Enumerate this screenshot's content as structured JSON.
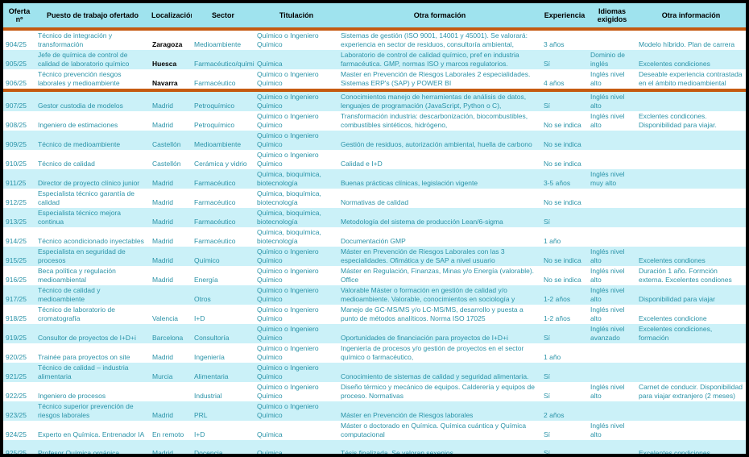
{
  "colors": {
    "header_bg": "#9fe3ee",
    "band_bg": "#cbf1f8",
    "divider": "#c55a11",
    "text_teal": "#2a93a8",
    "text_black": "#000000",
    "frame": "#000000"
  },
  "table": {
    "fields": [
      "oferta",
      "puesto",
      "localizacion",
      "sector",
      "titulacion",
      "otra_formacion",
      "experiencia",
      "idiomas",
      "otra_informacion"
    ],
    "columns": [
      {
        "field": "oferta",
        "label": "Oferta nº"
      },
      {
        "field": "puesto",
        "label": "Puesto de trabajo ofertado"
      },
      {
        "field": "localizacion",
        "label": "Localización"
      },
      {
        "field": "sector",
        "label": "Sector"
      },
      {
        "field": "titulacion",
        "label": "Titulación"
      },
      {
        "field": "otra_formacion",
        "label": "Otra formación"
      },
      {
        "field": "experiencia",
        "label": "Experiencia"
      },
      {
        "field": "idiomas",
        "label": "Idiomas exigidos"
      },
      {
        "field": "otra_informacion",
        "label": "Otra información"
      }
    ],
    "rows": [
      {
        "oferta": "904/25",
        "puesto": "Técnico de integración y transformación",
        "localizacion": "Zaragoza",
        "localizacion_bold": true,
        "sector": "Medioambiente",
        "titulacion": "Químico o Ingeniero Químico",
        "otra_formacion": "Sistemas de gestión (ISO 9001, 14001 y 45001). Se valorará: experiencia en sector de residuos, consultoría ambiental,",
        "experiencia": "3 años",
        "idiomas": "",
        "otra_informacion": "Modelo híbrido. Plan de carrera",
        "shaded": false,
        "divider_after": false
      },
      {
        "oferta": "905/25",
        "puesto": "Jefe de química de control de calidad de laboratorio químico",
        "localizacion": "Huesca",
        "localizacion_bold": true,
        "sector": "Farmacéutico/químico",
        "titulacion": "Química",
        "otra_formacion": "Laboratorio de control de calidad químico, pref en industria farmacéutica. GMP, normas ISO y marcos regulatorios.",
        "experiencia": "Sí",
        "idiomas": "Dominio de inglés",
        "otra_informacion": "Excelentes condiciones",
        "shaded": true,
        "divider_after": false
      },
      {
        "oferta": "906/25",
        "puesto": "Técnico prevención riesgos laborales y medioambiente",
        "localizacion": "Navarra",
        "localizacion_bold": true,
        "sector": "Farmacéutico",
        "titulacion": "Químico o Ingeniero Químico",
        "otra_formacion": "Master en Prevención de Riesgos Laborales 2 especialidades. Sistemas ERP's (SAP) y POWER BI",
        "experiencia": "4 años",
        "idiomas": "Inglés nivel alto",
        "otra_informacion": "Deseable experiencia contrastada en el ámbito medioambiental",
        "shaded": false,
        "divider_after": true
      },
      {
        "oferta": "907/25",
        "puesto": "Gestor custodia de modelos",
        "localizacion": "Madrid",
        "localizacion_bold": false,
        "sector": "Petroquímico",
        "titulacion": "Químico o Ingeniero Químico",
        "otra_formacion": "Conocimientos manejo de herramientas de análisis de datos, lenguajes de programación (JavaScript, Python o C),",
        "experiencia": "Sí",
        "idiomas": "Inglés nivel alto",
        "otra_informacion": "",
        "shaded": true,
        "divider_after": false
      },
      {
        "oferta": "908/25",
        "puesto": "Ingeniero de estimaciones",
        "localizacion": "Madrid",
        "localizacion_bold": false,
        "sector": "Petroquímico",
        "titulacion": "Químico o Ingeniero Químico",
        "otra_formacion": "Transformación industria: descarbonización, biocombustibles, combustibles sintéticos, hidrógeno,",
        "experiencia": "No se indica",
        "idiomas": "Inglés nivel alto",
        "otra_informacion": "Exclentes condicones. Disponibilidad para viajar.",
        "shaded": false,
        "divider_after": false
      },
      {
        "oferta": "909/25",
        "puesto": "Técnico de medioambiente",
        "localizacion": "Castellón",
        "localizacion_bold": false,
        "sector": "Medioambiente",
        "titulacion": "Químico o Ingeniero Químico",
        "otra_formacion": "Gestión de residuos, autorización ambiental, huella de carbono",
        "experiencia": "No se indica",
        "idiomas": "",
        "otra_informacion": "",
        "shaded": true,
        "divider_after": false
      },
      {
        "oferta": "910/25",
        "puesto": "Técnico de calidad",
        "localizacion": "Castellón",
        "localizacion_bold": false,
        "sector": "Cerámica y vidrio",
        "titulacion": "Químico o Ingeniero Químico",
        "otra_formacion": "Calidad e I+D",
        "experiencia": "No se indica",
        "idiomas": "",
        "otra_informacion": "",
        "shaded": false,
        "divider_after": false
      },
      {
        "oferta": "911/25",
        "puesto": "Director de proyecto clínico junior",
        "localizacion": "Madrid",
        "localizacion_bold": false,
        "sector": "Farmacéutico",
        "titulacion": "Química, bioquímica, biotecnología",
        "otra_formacion": "Buenas prácticas clínicas, legislación vigente",
        "experiencia": "3-5 años",
        "idiomas": "Inglés nivel muy alto",
        "otra_informacion": "",
        "shaded": true,
        "divider_after": false
      },
      {
        "oferta": "912/25",
        "puesto": "Especialista técnico garantía de calidad",
        "localizacion": "Madrid",
        "localizacion_bold": false,
        "sector": "Farmacéutico",
        "titulacion": "Química, bioquímica, biotecnología",
        "otra_formacion": "Normativas de calidad",
        "experiencia": "No se indica",
        "idiomas": "",
        "otra_informacion": "",
        "shaded": false,
        "divider_after": false
      },
      {
        "oferta": "913/25",
        "puesto": "Especialista técnico mejora continua",
        "localizacion": "Madrid",
        "localizacion_bold": false,
        "sector": "Farmacéutico",
        "titulacion": "Química, bioquímica, biotecnología",
        "otra_formacion": "Metodología del sistema de producción Lean/6-sigma",
        "experiencia": "Sí",
        "idiomas": "",
        "otra_informacion": "",
        "shaded": true,
        "divider_after": false
      },
      {
        "oferta": "914/25",
        "puesto": "Técnico acondicionado inyectables",
        "localizacion": "Madrid",
        "localizacion_bold": false,
        "sector": "Farmacéutico",
        "titulacion": "Química, bioquímica, biotecnología",
        "otra_formacion": "Documentación GMP",
        "experiencia": "1 año",
        "idiomas": "",
        "otra_informacion": "",
        "shaded": false,
        "divider_after": false
      },
      {
        "oferta": "915/25",
        "puesto": "Especialista en seguridad de procesos",
        "localizacion": "Madrid",
        "localizacion_bold": false,
        "sector": "Químico",
        "titulacion": "Químico o Ingeniero Químico",
        "otra_formacion": "Máster en Prevención de Riesgos Laborales con las 3 especialidades. Ofimática y de SAP a nivel usuario",
        "experiencia": "No se indica",
        "idiomas": "Inglés nivel alto",
        "otra_informacion": "Excelentes condiones",
        "shaded": true,
        "divider_after": false
      },
      {
        "oferta": "916/25",
        "puesto": "Beca política y regulación medioambiental",
        "localizacion": "Madrid",
        "localizacion_bold": false,
        "sector": "Energía",
        "titulacion": "Químico o Ingeniero Químico",
        "otra_formacion": "Máster en Regulación, Finanzas, Minas y/o Energía (valorable). Office",
        "experiencia": "No se indica",
        "idiomas": "Inglés nivel alto",
        "otra_informacion": "Duración 1 año. Formción externa. Excelentes condiones",
        "shaded": false,
        "divider_after": false
      },
      {
        "oferta": "917/25",
        "puesto": "Técnico de calidad y medioambiente",
        "localizacion": "",
        "localizacion_bold": false,
        "sector": "Otros",
        "titulacion": "Químico o Ingeniero Químico",
        "otra_formacion": "Valorable Máster o formación en gestión de calidad y/o medioambiente. Valorable, conocimientos en sociología y",
        "experiencia": "1-2 años",
        "idiomas": "Inglés nivel alto",
        "otra_informacion": "Disponibilidad para viajar",
        "shaded": true,
        "divider_after": false
      },
      {
        "oferta": "918/25",
        "puesto": "Técnico de laboratorio de cromatografía",
        "localizacion": "Valencia",
        "localizacion_bold": false,
        "sector": "I+D",
        "titulacion": "Químico o Ingeniero Químico",
        "otra_formacion": "Manejo de GC-MS/MS y/o LC-MS/MS, desarrollo y puesta a punto de métodos analíticos. Norma ISO 17025",
        "experiencia": "1-2 años",
        "idiomas": "Inglés nivel alto",
        "otra_informacion": "Excelentes condicione",
        "shaded": false,
        "divider_after": false
      },
      {
        "oferta": "919/25",
        "puesto": "Consultor de proyectos de I+D+i",
        "localizacion": "Barcelona",
        "localizacion_bold": false,
        "sector": "Consultoría",
        "titulacion": "Químico o Ingeniero Químico",
        "otra_formacion": "Oportunidades de financiación para proyectos de I+D+i",
        "experiencia": "Sí",
        "idiomas": "Inglés nivel avanzado",
        "otra_informacion": "Excelentes condiciones, formación",
        "shaded": true,
        "divider_after": false
      },
      {
        "oferta": "920/25",
        "puesto": "Trainée para proyectos on site",
        "localizacion": "Madrid",
        "localizacion_bold": false,
        "sector": "Ingeniería",
        "titulacion": "Químico o Ingeniero Químico",
        "otra_formacion": "Ingeniería de procesos y/o gestión de proyectos en el sector químico o farmacéutico,",
        "experiencia": "1 año",
        "idiomas": "",
        "otra_informacion": "",
        "shaded": false,
        "divider_after": false
      },
      {
        "oferta": "921/25",
        "puesto": "Técnico de calidad – industria alimentaria",
        "localizacion": "Murcia",
        "localizacion_bold": false,
        "sector": "Alimentaria",
        "titulacion": "Químico o Ingeniero Químico",
        "otra_formacion": "Conocimiento de sistemas de calidad y seguridad alimentaria.",
        "experiencia": "Sí",
        "idiomas": "",
        "otra_informacion": "",
        "shaded": true,
        "divider_after": false
      },
      {
        "oferta": "922/25",
        "puesto": "Ingeniero de procesos",
        "localizacion": "",
        "localizacion_bold": false,
        "sector": "Industrial",
        "titulacion": "Químico o Ingeniero Químico",
        "otra_formacion": "Diseño térmico y mecánico de equipos. Calderería y equipos de proceso. Normativas",
        "experiencia": "Sí",
        "idiomas": "Inglés nivel alto",
        "otra_informacion": "Carnet de conducir. Disponibilidad para viajar extranjero (2 meses)",
        "shaded": false,
        "divider_after": false
      },
      {
        "oferta": "923/25",
        "puesto": "Técnico superior prevención de riesgos laborales",
        "localizacion": "Madrid",
        "localizacion_bold": false,
        "sector": "PRL",
        "titulacion": "Químico o Ingeniero Químico",
        "otra_formacion": "Máster en Prevención de Riesgos laborales",
        "experiencia": "2 años",
        "idiomas": "",
        "otra_informacion": "",
        "shaded": true,
        "divider_after": false
      },
      {
        "oferta": "924/25",
        "puesto": "Experto en Química. Entrenador IA",
        "localizacion": "En remoto",
        "localizacion_bold": false,
        "sector": "I+D",
        "titulacion": "Química",
        "otra_formacion": "Máster o doctorado en Química. Química cuántica y Química computacional",
        "experiencia": "Sí",
        "idiomas": "Inglés nivel alto",
        "otra_informacion": "",
        "shaded": false,
        "divider_after": false
      },
      {
        "oferta": "925/25",
        "puesto": "Profesor Química orgánica",
        "localizacion": "Madrid",
        "localizacion_bold": false,
        "sector": "Docencia",
        "titulacion": "Química",
        "otra_formacion": "Tésis finalizada. Se valoran sexenios",
        "experiencia": "Sí",
        "idiomas": "",
        "otra_informacion": "Excelentes condiciones",
        "shaded": true,
        "divider_after": false
      }
    ]
  }
}
